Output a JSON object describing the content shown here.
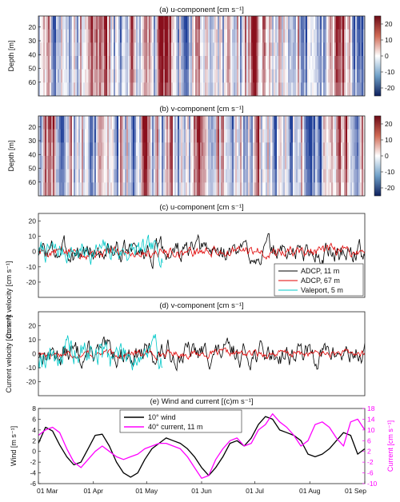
{
  "chart_data": [
    {
      "type": "heatmap",
      "title": "(a) u-component [cm s⁻¹]",
      "ylabel": "Depth [m]",
      "y_ticks": [
        20,
        30,
        40,
        50,
        60
      ],
      "ylim": [
        12,
        70
      ],
      "colorbar_ticks": [
        20,
        10,
        0,
        -10,
        -20
      ],
      "colorbar_range": [
        -25,
        25
      ],
      "colormap": {
        "neg": "#1f3f99",
        "mid": "#ffffff",
        "pos": "#8a0f1c"
      },
      "x_ticks_visible": false,
      "seed": 11
    },
    {
      "type": "heatmap",
      "title": "(b) v-component [cm s⁻¹]",
      "ylabel": "Depth [m]",
      "y_ticks": [
        20,
        30,
        40,
        50,
        60
      ],
      "ylim": [
        12,
        70
      ],
      "colorbar_ticks": [
        20,
        10,
        0,
        -10,
        -20
      ],
      "colorbar_range": [
        -25,
        25
      ],
      "colormap": {
        "neg": "#1f3f99",
        "mid": "#ffffff",
        "pos": "#8a0f1c"
      },
      "x_ticks_visible": false,
      "seed": 29
    },
    {
      "type": "line",
      "title": "(c) u-component [cm s⁻¹]",
      "ylabel": "Current velocity [cm s⁻¹]",
      "ylim": [
        -30,
        25
      ],
      "y_ticks": [
        20,
        10,
        0,
        -10,
        -20
      ],
      "x_ticks_visible": false,
      "legend": "bottom-right",
      "series": [
        {
          "name": "ADCP, 11 m",
          "color": "#000000",
          "x_range": [
            0,
            184
          ],
          "std": 8,
          "seed": 3
        },
        {
          "name": "ADCP, 67 m",
          "color": "#e00000",
          "x_range": [
            0,
            184
          ],
          "std": 4,
          "seed": 5
        },
        {
          "name": "Valeport, 5 m",
          "color": "#00c8c8",
          "x_range": [
            0,
            70
          ],
          "std": 8,
          "seed": 7
        }
      ]
    },
    {
      "type": "line",
      "title": "(d) v-component [cm s⁻¹]",
      "ylabel": "Current velocity [cm s⁻¹]",
      "ylim": [
        -30,
        30
      ],
      "y_ticks": [
        20,
        10,
        0,
        -10,
        -20
      ],
      "x_ticks_visible": false,
      "series": [
        {
          "name": "ADCP, 11 m",
          "color": "#000000",
          "x_range": [
            0,
            184
          ],
          "std": 9,
          "seed": 13
        },
        {
          "name": "ADCP, 67 m",
          "color": "#e00000",
          "x_range": [
            0,
            184
          ],
          "std": 3,
          "seed": 17
        },
        {
          "name": "Valeport, 5 m",
          "color": "#00c8c8",
          "x_range": [
            0,
            70
          ],
          "std": 12,
          "seed": 19
        }
      ]
    },
    {
      "type": "line",
      "title": "(e) Wind and current [(c)m s⁻¹]",
      "ylabel_left": "Wind [m s⁻¹]",
      "ylabel_right": "Current [cm s⁻¹]",
      "ylim_left": [
        -6,
        8
      ],
      "ylim_right": [
        -10,
        18
      ],
      "y_ticks_left": [
        8,
        6,
        4,
        2,
        0,
        -2,
        -4,
        -6
      ],
      "y_ticks_right": [
        18,
        14,
        10,
        6,
        2,
        -2,
        -6,
        -10
      ],
      "legend": "top-left",
      "x_ticks": [
        "01 Mar",
        "01 Apr",
        "01 May",
        "01 Jun",
        "01 Jul",
        "01 Aug",
        "01 Sep"
      ],
      "x_tick_days": [
        0,
        31,
        61,
        92,
        122,
        153,
        184
      ],
      "series": [
        {
          "name": "10° wind",
          "color": "#000000",
          "axis": "left",
          "x": [
            0,
            4,
            8,
            12,
            16,
            20,
            24,
            28,
            32,
            36,
            40,
            44,
            48,
            52,
            56,
            60,
            64,
            68,
            72,
            76,
            80,
            84,
            88,
            92,
            96,
            100,
            104,
            108,
            112,
            116,
            120,
            124,
            128,
            132,
            136,
            140,
            144,
            148,
            152,
            156,
            160,
            164,
            168,
            172,
            176,
            180,
            184
          ],
          "y": [
            1.5,
            4.5,
            3.8,
            1.2,
            -1.0,
            -2.5,
            -2.0,
            0.5,
            3.0,
            3.2,
            1.0,
            -2.0,
            -4.0,
            -4.8,
            -4.0,
            -1.5,
            0.5,
            1.5,
            2.5,
            2.0,
            1.5,
            0.5,
            -1.0,
            -3.0,
            -4.5,
            -3.0,
            -1.0,
            1.5,
            2.0,
            1.0,
            2.5,
            5.0,
            6.5,
            6.0,
            4.0,
            3.5,
            3.0,
            2.0,
            -0.5,
            -1.0,
            -0.5,
            0.5,
            2.0,
            3.5,
            3.0,
            -0.5,
            0.5
          ]
        },
        {
          "name": "40° current, 11 m",
          "color": "#ff00ff",
          "axis": "right",
          "x": [
            0,
            4,
            8,
            12,
            16,
            20,
            24,
            28,
            32,
            36,
            40,
            44,
            48,
            52,
            56,
            60,
            64,
            68,
            72,
            76,
            80,
            84,
            88,
            92,
            96,
            100,
            104,
            108,
            112,
            116,
            120,
            124,
            128,
            132,
            136,
            140,
            144,
            148,
            152,
            156,
            160,
            164,
            168,
            172,
            176,
            180,
            184
          ],
          "y": [
            8,
            10,
            11,
            9,
            3,
            -2,
            -4,
            -1,
            2,
            4,
            2,
            0,
            -1,
            0,
            1,
            3,
            4,
            5,
            5,
            4,
            3,
            0,
            -4,
            -8,
            -7,
            -1,
            3,
            6,
            7,
            4,
            5,
            10,
            12,
            16,
            13,
            11,
            8,
            4,
            6,
            12,
            13,
            11,
            7,
            4,
            13,
            14,
            10
          ]
        }
      ]
    }
  ]
}
